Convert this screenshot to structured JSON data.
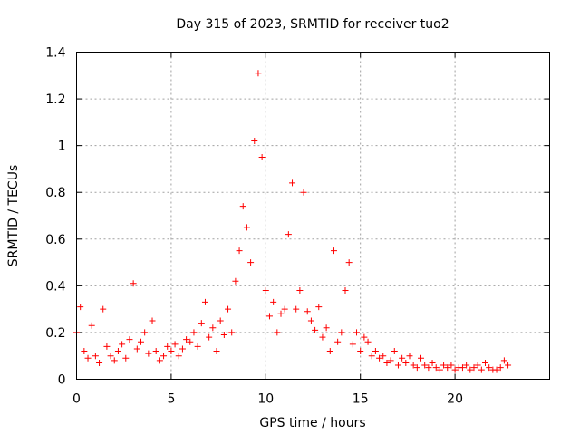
{
  "chart_data": {
    "type": "scatter",
    "title": "Day 315 of 2023, SRMTID for receiver tuo2",
    "xlabel": "GPS time / hours",
    "ylabel": "SRMTID / TECUs",
    "xlim": [
      0,
      25
    ],
    "ylim": [
      0,
      1.4
    ],
    "xticks": [
      0,
      5,
      10,
      15,
      20
    ],
    "yticks": [
      0,
      0.2,
      0.4,
      0.6,
      0.8,
      1.0,
      1.2,
      1.4
    ],
    "xtick_labels": [
      "0",
      "5",
      "10",
      "15",
      "20"
    ],
    "ytick_labels": [
      "0",
      "0.2",
      "0.4",
      "0.6",
      "0.8",
      "1",
      "1.2",
      "1.4"
    ],
    "grid": true,
    "marker": "plus",
    "color": "#ff0000",
    "series": [
      {
        "name": "SRMTID",
        "x": [
          0.0,
          0.2,
          0.4,
          0.6,
          0.8,
          1.0,
          1.2,
          1.4,
          1.6,
          1.8,
          2.0,
          2.2,
          2.4,
          2.6,
          2.8,
          3.0,
          3.2,
          3.4,
          3.6,
          3.8,
          4.0,
          4.2,
          4.4,
          4.6,
          4.8,
          5.0,
          5.2,
          5.4,
          5.6,
          5.8,
          6.0,
          6.2,
          6.4,
          6.6,
          6.8,
          7.0,
          7.2,
          7.4,
          7.6,
          7.8,
          8.0,
          8.2,
          8.4,
          8.6,
          8.8,
          9.0,
          9.2,
          9.4,
          9.6,
          9.8,
          10.0,
          10.2,
          10.4,
          10.6,
          10.8,
          11.0,
          11.2,
          11.4,
          11.6,
          11.8,
          12.0,
          12.2,
          12.4,
          12.6,
          12.8,
          13.0,
          13.2,
          13.4,
          13.6,
          13.8,
          14.0,
          14.2,
          14.4,
          14.6,
          14.8,
          15.0,
          15.2,
          15.4,
          15.6,
          15.8,
          16.0,
          16.2,
          16.4,
          16.6,
          16.8,
          17.0,
          17.2,
          17.4,
          17.6,
          17.8,
          18.0,
          18.2,
          18.4,
          18.6,
          18.8,
          19.0,
          19.2,
          19.4,
          19.6,
          19.8,
          20.0,
          20.2,
          20.4,
          20.6,
          20.8,
          21.0,
          21.2,
          21.4,
          21.6,
          21.8,
          22.0,
          22.2,
          22.4,
          22.6,
          22.8
        ],
        "y": [
          0.2,
          0.31,
          0.12,
          0.09,
          0.23,
          0.1,
          0.07,
          0.3,
          0.14,
          0.1,
          0.08,
          0.12,
          0.15,
          0.09,
          0.17,
          0.41,
          0.13,
          0.16,
          0.2,
          0.11,
          0.25,
          0.12,
          0.08,
          0.1,
          0.14,
          0.12,
          0.15,
          0.1,
          0.13,
          0.17,
          0.16,
          0.2,
          0.14,
          0.24,
          0.33,
          0.18,
          0.22,
          0.12,
          0.25,
          0.19,
          0.3,
          0.2,
          0.42,
          0.55,
          0.74,
          0.65,
          0.5,
          1.02,
          1.31,
          0.95,
          0.38,
          0.27,
          0.33,
          0.2,
          0.28,
          0.3,
          0.62,
          0.84,
          0.3,
          0.38,
          0.8,
          0.29,
          0.25,
          0.21,
          0.31,
          0.18,
          0.22,
          0.12,
          0.55,
          0.16,
          0.2,
          0.38,
          0.5,
          0.15,
          0.2,
          0.12,
          0.18,
          0.16,
          0.1,
          0.12,
          0.09,
          0.1,
          0.07,
          0.08,
          0.12,
          0.06,
          0.09,
          0.07,
          0.1,
          0.06,
          0.05,
          0.09,
          0.06,
          0.05,
          0.07,
          0.05,
          0.04,
          0.06,
          0.05,
          0.06,
          0.04,
          0.05,
          0.05,
          0.06,
          0.04,
          0.05,
          0.06,
          0.04,
          0.07,
          0.05,
          0.04,
          0.04,
          0.05,
          0.08,
          0.06
        ]
      }
    ]
  }
}
